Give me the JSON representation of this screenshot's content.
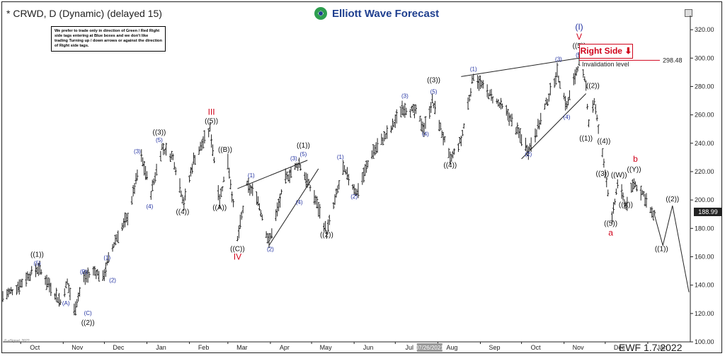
{
  "header": {
    "title": "* CRWD, D (Dynamic) (delayed 15)",
    "brand": "Elliott Wave Forecast",
    "note": "We prefer to trade only in direction of Green / Red Right side tags entering at Blue boxes and we don't like trading Turning up / down arrows or against the direction of Right side tags."
  },
  "right_side": {
    "label": "Right Side",
    "arrow": "⬇"
  },
  "invalidation": {
    "label": "Invalidation level",
    "value": "298.48"
  },
  "last_price": "188.99",
  "footer": {
    "label": "EWF 1.7.2022",
    "copyright": "© eSignal, 2022"
  },
  "colors": {
    "blue": "#1f2fa0",
    "red": "#d0021b",
    "black": "#111111",
    "bars": "#222222"
  },
  "chart_data": {
    "type": "ohlc",
    "symbol": "CRWD",
    "ylim": [
      100,
      330
    ],
    "yticks": [
      "320.00",
      "300.00",
      "280.00",
      "260.00",
      "240.00",
      "220.00",
      "200.00",
      "180.00",
      "160.00",
      "140.00",
      "120.00",
      "100.00"
    ],
    "xticks": [
      "Oct",
      "Nov",
      "Dec",
      "Jan",
      "Feb",
      "Mar",
      "Apr",
      "May",
      "Jun",
      "Jul",
      "Aug",
      "Sep",
      "Oct",
      "Nov",
      "Dec",
      "Jan"
    ],
    "axis_date": "07/26/2021",
    "path": [
      {
        "d": "2020-09-18",
        "v": 132
      },
      {
        "d": "2020-09-28",
        "v": 138
      },
      {
        "d": "2020-10-08",
        "v": 148
      },
      {
        "d": "2020-10-14",
        "v": 152
      },
      {
        "d": "2020-10-22",
        "v": 140
      },
      {
        "d": "2020-10-30",
        "v": 128
      },
      {
        "d": "2020-11-04",
        "v": 142
      },
      {
        "d": "2020-11-09",
        "v": 122
      },
      {
        "d": "2020-11-16",
        "v": 145
      },
      {
        "d": "2020-11-24",
        "v": 150
      },
      {
        "d": "2020-11-30",
        "v": 145
      },
      {
        "d": "2020-12-03",
        "v": 155
      },
      {
        "d": "2020-12-09",
        "v": 172
      },
      {
        "d": "2020-12-18",
        "v": 188
      },
      {
        "d": "2020-12-28",
        "v": 230
      },
      {
        "d": "2021-01-04",
        "v": 205
      },
      {
        "d": "2021-01-12",
        "v": 237
      },
      {
        "d": "2021-01-20",
        "v": 230
      },
      {
        "d": "2021-01-28",
        "v": 198
      },
      {
        "d": "2021-02-04",
        "v": 228
      },
      {
        "d": "2021-02-16",
        "v": 250
      },
      {
        "d": "2021-02-23",
        "v": 200
      },
      {
        "d": "2021-03-01",
        "v": 228
      },
      {
        "d": "2021-03-08",
        "v": 172
      },
      {
        "d": "2021-03-15",
        "v": 210
      },
      {
        "d": "2021-03-22",
        "v": 203
      },
      {
        "d": "2021-03-31",
        "v": 170
      },
      {
        "d": "2021-04-12",
        "v": 215
      },
      {
        "d": "2021-04-22",
        "v": 226
      },
      {
        "d": "2021-05-04",
        "v": 200
      },
      {
        "d": "2021-05-12",
        "v": 177
      },
      {
        "d": "2021-05-24",
        "v": 222
      },
      {
        "d": "2021-06-03",
        "v": 205
      },
      {
        "d": "2021-06-14",
        "v": 233
      },
      {
        "d": "2021-06-28",
        "v": 250
      },
      {
        "d": "2021-07-06",
        "v": 265
      },
      {
        "d": "2021-07-16",
        "v": 262
      },
      {
        "d": "2021-07-22",
        "v": 250
      },
      {
        "d": "2021-07-28",
        "v": 270
      },
      {
        "d": "2021-08-10",
        "v": 228
      },
      {
        "d": "2021-08-18",
        "v": 242
      },
      {
        "d": "2021-08-27",
        "v": 288
      },
      {
        "d": "2021-09-07",
        "v": 275
      },
      {
        "d": "2021-09-20",
        "v": 262
      },
      {
        "d": "2021-10-06",
        "v": 235
      },
      {
        "d": "2021-10-14",
        "v": 254
      },
      {
        "d": "2021-10-27",
        "v": 290
      },
      {
        "d": "2021-11-03",
        "v": 266
      },
      {
        "d": "2021-11-12",
        "v": 298
      },
      {
        "d": "2021-11-17",
        "v": 280
      },
      {
        "d": "2021-11-19",
        "v": 255
      },
      {
        "d": "2021-11-23",
        "v": 270
      },
      {
        "d": "2021-11-26",
        "v": 250
      },
      {
        "d": "2021-12-01",
        "v": 220
      },
      {
        "d": "2021-12-06",
        "v": 186
      },
      {
        "d": "2021-12-10",
        "v": 212
      },
      {
        "d": "2021-12-16",
        "v": 196
      },
      {
        "d": "2021-12-22",
        "v": 212
      },
      {
        "d": "2021-12-29",
        "v": 204
      },
      {
        "d": "2022-01-04",
        "v": 190
      },
      {
        "d": "2022-01-06",
        "v": 189
      }
    ],
    "projection": [
      {
        "d": "2022-01-06",
        "v": 189
      },
      {
        "d": "2022-01-12",
        "v": 168
      },
      {
        "d": "2022-01-19",
        "v": 196
      },
      {
        "d": "2022-01-31",
        "v": 135
      }
    ],
    "trendlines": [
      {
        "from": {
          "d": "2021-03-08",
          "v": 208
        },
        "to": {
          "d": "2021-04-28",
          "v": 228
        }
      },
      {
        "from": {
          "d": "2021-03-31",
          "v": 168
        },
        "to": {
          "d": "2021-05-06",
          "v": 222
        }
      },
      {
        "from": {
          "d": "2021-08-18",
          "v": 287
        },
        "to": {
          "d": "2021-11-12",
          "v": 300
        }
      },
      {
        "from": {
          "d": "2021-10-01",
          "v": 229
        },
        "to": {
          "d": "2021-11-17",
          "v": 275
        }
      }
    ],
    "invalidation_level": 298.48,
    "labels": [
      {
        "t": "((1))",
        "d": "2020-10-13",
        "v": 160,
        "c": "black"
      },
      {
        "t": "(5)",
        "d": "2020-10-13",
        "v": 154,
        "c": "blue"
      },
      {
        "t": "(A)",
        "d": "2020-11-03",
        "v": 126,
        "c": "blue"
      },
      {
        "t": "(B)",
        "d": "2020-11-16",
        "v": 148,
        "c": "blue"
      },
      {
        "t": "(C)",
        "d": "2020-11-19",
        "v": 119,
        "c": "blue"
      },
      {
        "t": "((2))",
        "d": "2020-11-19",
        "v": 112,
        "c": "black"
      },
      {
        "t": "(1)",
        "d": "2020-12-03",
        "v": 158,
        "c": "blue"
      },
      {
        "t": "(2)",
        "d": "2020-12-07",
        "v": 142,
        "c": "blue"
      },
      {
        "t": "(3)",
        "d": "2020-12-25",
        "v": 233,
        "c": "blue"
      },
      {
        "t": "(4)",
        "d": "2021-01-03",
        "v": 194,
        "c": "blue"
      },
      {
        "t": "((3))",
        "d": "2021-01-10",
        "v": 246,
        "c": "black"
      },
      {
        "t": "(5)",
        "d": "2021-01-10",
        "v": 241,
        "c": "blue"
      },
      {
        "t": "((4))",
        "d": "2021-01-27",
        "v": 190,
        "c": "black"
      },
      {
        "t": "III",
        "d": "2021-02-17",
        "v": 260,
        "c": "red"
      },
      {
        "t": "((5))",
        "d": "2021-02-17",
        "v": 254,
        "c": "black"
      },
      {
        "t": "((B))",
        "d": "2021-02-27",
        "v": 234,
        "c": "black"
      },
      {
        "t": "((A))",
        "d": "2021-02-23",
        "v": 193,
        "c": "black"
      },
      {
        "t": "((C))",
        "d": "2021-03-08",
        "v": 164,
        "c": "black"
      },
      {
        "t": "IV",
        "d": "2021-03-08",
        "v": 158,
        "c": "red"
      },
      {
        "t": "(1)",
        "d": "2021-03-18",
        "v": 216,
        "c": "blue"
      },
      {
        "t": "(2)",
        "d": "2021-04-01",
        "v": 164,
        "c": "blue"
      },
      {
        "t": "(3)",
        "d": "2021-04-18",
        "v": 228,
        "c": "blue"
      },
      {
        "t": "(5)",
        "d": "2021-04-25",
        "v": 231,
        "c": "blue"
      },
      {
        "t": "((1))",
        "d": "2021-04-25",
        "v": 237,
        "c": "black"
      },
      {
        "t": "(4)",
        "d": "2021-04-22",
        "v": 197,
        "c": "blue"
      },
      {
        "t": "((2))",
        "d": "2021-05-12",
        "v": 174,
        "c": "black"
      },
      {
        "t": "(1)",
        "d": "2021-05-22",
        "v": 229,
        "c": "blue"
      },
      {
        "t": "(2)",
        "d": "2021-06-01",
        "v": 201,
        "c": "blue"
      },
      {
        "t": "(3)",
        "d": "2021-07-08",
        "v": 272,
        "c": "blue"
      },
      {
        "t": "((3))",
        "d": "2021-07-29",
        "v": 283,
        "c": "black"
      },
      {
        "t": "(5)",
        "d": "2021-07-29",
        "v": 275,
        "c": "blue"
      },
      {
        "t": "(4)",
        "d": "2021-07-23",
        "v": 245,
        "c": "blue"
      },
      {
        "t": "((4))",
        "d": "2021-08-10",
        "v": 223,
        "c": "black"
      },
      {
        "t": "(1)",
        "d": "2021-08-27",
        "v": 291,
        "c": "blue"
      },
      {
        "t": "(2)",
        "d": "2021-10-06",
        "v": 231,
        "c": "blue"
      },
      {
        "t": "(3)",
        "d": "2021-10-28",
        "v": 298,
        "c": "blue"
      },
      {
        "t": "(4)",
        "d": "2021-11-03",
        "v": 257,
        "c": "blue"
      },
      {
        "t": "(I)",
        "d": "2021-11-12",
        "v": 320,
        "c": "blue"
      },
      {
        "t": "V",
        "d": "2021-11-12",
        "v": 313,
        "c": "red"
      },
      {
        "t": "((5))",
        "d": "2021-11-12",
        "v": 307,
        "c": "black"
      },
      {
        "t": "(5)",
        "d": "2021-11-12",
        "v": 301,
        "c": "blue"
      },
      {
        "t": "((2))",
        "d": "2021-11-22",
        "v": 279,
        "c": "black"
      },
      {
        "t": "((1))",
        "d": "2021-11-17",
        "v": 242,
        "c": "black"
      },
      {
        "t": "((4))",
        "d": "2021-11-30",
        "v": 240,
        "c": "black"
      },
      {
        "t": "((3))",
        "d": "2021-11-29",
        "v": 217,
        "c": "black"
      },
      {
        "t": "((W))",
        "d": "2021-12-11",
        "v": 216,
        "c": "black"
      },
      {
        "t": "((Y))",
        "d": "2021-12-22",
        "v": 220,
        "c": "black"
      },
      {
        "t": "b",
        "d": "2021-12-23",
        "v": 227,
        "c": "red"
      },
      {
        "t": "((X))",
        "d": "2021-12-16",
        "v": 195,
        "c": "black"
      },
      {
        "t": "((5))",
        "d": "2021-12-05",
        "v": 182,
        "c": "black"
      },
      {
        "t": "a",
        "d": "2021-12-05",
        "v": 175,
        "c": "red"
      },
      {
        "t": "((2))",
        "d": "2022-01-19",
        "v": 199,
        "c": "black"
      },
      {
        "t": "((1))",
        "d": "2022-01-11",
        "v": 164,
        "c": "black"
      }
    ]
  }
}
